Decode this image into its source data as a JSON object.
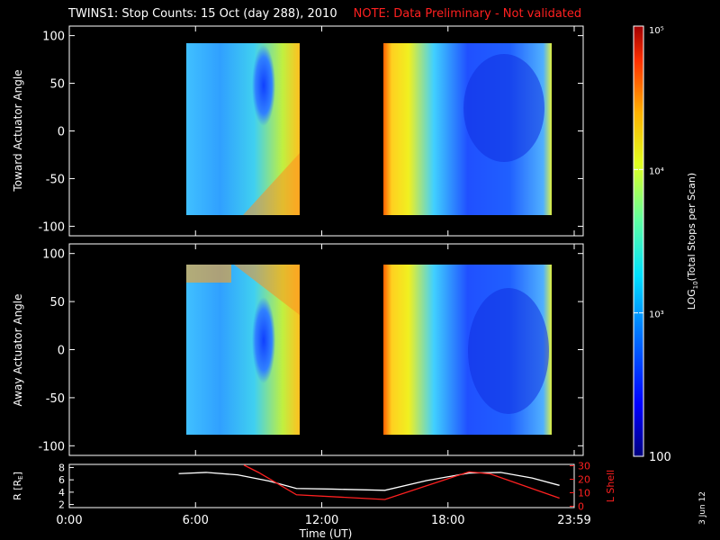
{
  "chart_data": {
    "type": "heatmap",
    "title": "TWINS1: Stop Counts: 15 Oct (day 288), 2010",
    "note": "NOTE: Data Preliminary - Not validated",
    "xlabel": "Time (UT)",
    "x_ticks": [
      "0:00",
      "6:00",
      "12:00",
      "18:00",
      "23:59"
    ],
    "x_tick_hours": [
      0,
      6,
      12,
      18,
      24
    ],
    "panels": [
      {
        "ylabel": "Toward Actuator Angle",
        "ylim": [
          -110,
          110
        ],
        "y_ticks": [
          100,
          50,
          0,
          -50,
          -100
        ],
        "data_blocks_hours": [
          [
            5.4,
            10.8
          ],
          [
            15.0,
            23.3
          ]
        ],
        "data_angle_range": [
          -90,
          90
        ]
      },
      {
        "ylabel": "Away Actuator Angle",
        "ylim": [
          -110,
          110
        ],
        "y_ticks": [
          100,
          50,
          0,
          -50,
          -100
        ],
        "data_blocks_hours": [
          [
            5.4,
            10.8
          ],
          [
            15.0,
            23.3
          ]
        ],
        "data_angle_range": [
          -90,
          90
        ]
      }
    ],
    "colorbar": {
      "label": "LOG10(Total Stops per Scan)",
      "scale": "log",
      "range": [
        100,
        100000
      ],
      "tick_values": [
        100,
        1000,
        10000,
        100000
      ],
      "tick_labels": [
        "100",
        "10³",
        "10⁴",
        "10⁵"
      ]
    },
    "ephemeris": {
      "left_ylabel": "R [RE]",
      "left_ticks": [
        2,
        4,
        6,
        8
      ],
      "left_ylim": [
        1.5,
        8.5
      ],
      "right_ylabel": "L Shell",
      "right_ticks": [
        0,
        10,
        20,
        30
      ],
      "right_ylim": [
        -1,
        31
      ],
      "series": [
        {
          "color": "#ffffff",
          "x": [
            5.2,
            6.5,
            8.0,
            9.5,
            10.8,
            12.5,
            15.0,
            17.0,
            19.0,
            20.5,
            22.0,
            23.3
          ],
          "y": [
            7.0,
            7.2,
            6.8,
            5.8,
            4.6,
            4.5,
            4.3,
            5.9,
            7.1,
            7.2,
            6.3,
            5.1
          ]
        },
        {
          "color": "#ff2020",
          "x": [
            8.3,
            9.0,
            10.8,
            15.0,
            19.0,
            20.0,
            23.3
          ],
          "y": [
            30.5,
            25,
            8.5,
            5.0,
            25.5,
            24.0,
            6.0
          ]
        }
      ]
    },
    "date_stamp": "3 Jun 12"
  }
}
